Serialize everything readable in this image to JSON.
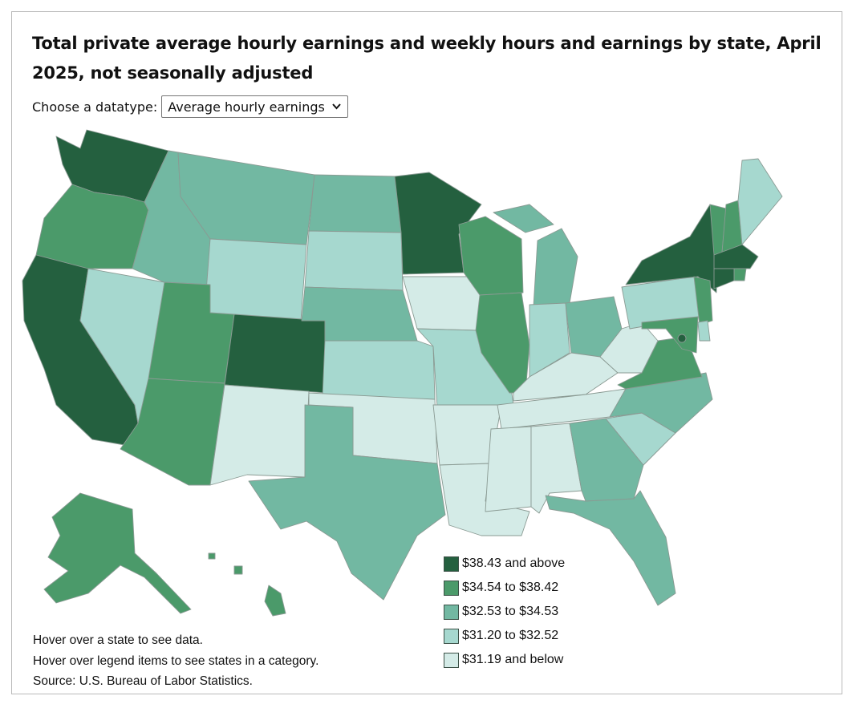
{
  "title": "Total private average hourly earnings and weekly hours and earnings by state, April 2025, not seasonally adjusted",
  "datatype_selector": {
    "label": "Choose a datatype:",
    "selected": "Average hourly earnings"
  },
  "legend": [
    {
      "label": "$38.43 and above",
      "color": "#24603f"
    },
    {
      "label": "$34.54 to $38.42",
      "color": "#4b9a6a"
    },
    {
      "label": "$32.53 to $34.53",
      "color": "#72b8a2"
    },
    {
      "label": "$31.20 to $32.52",
      "color": "#a6d8cf"
    },
    {
      "label": "$31.19 and below",
      "color": "#d4ebe7"
    }
  ],
  "notes": [
    "Hover over a state to see data.",
    "Hover over legend items to see states in a category.",
    "Source: U.S. Bureau of Labor Statistics."
  ],
  "state_categories": {
    "WA": 0,
    "OR": 1,
    "CA": 0,
    "NV": 3,
    "ID": 2,
    "MT": 2,
    "WY": 3,
    "UT": 1,
    "AZ": 1,
    "CO": 0,
    "NM": 4,
    "ND": 2,
    "SD": 3,
    "NE": 2,
    "KS": 3,
    "OK": 4,
    "TX": 2,
    "MN": 0,
    "IA": 4,
    "MO": 3,
    "AR": 4,
    "LA": 4,
    "WI": 1,
    "IL": 1,
    "MI": 2,
    "IN": 3,
    "OH": 2,
    "KY": 4,
    "TN": 4,
    "MS": 4,
    "AL": 4,
    "GA": 2,
    "FL": 2,
    "SC": 3,
    "NC": 2,
    "VA": 1,
    "WV": 4,
    "PA": 3,
    "NY": 0,
    "VT": 1,
    "NH": 1,
    "ME": 3,
    "MA": 0,
    "RI": 1,
    "CT": 0,
    "NJ": 1,
    "DE": 3,
    "MD": 1,
    "DC": 0,
    "AK": 1,
    "HI": 1
  }
}
